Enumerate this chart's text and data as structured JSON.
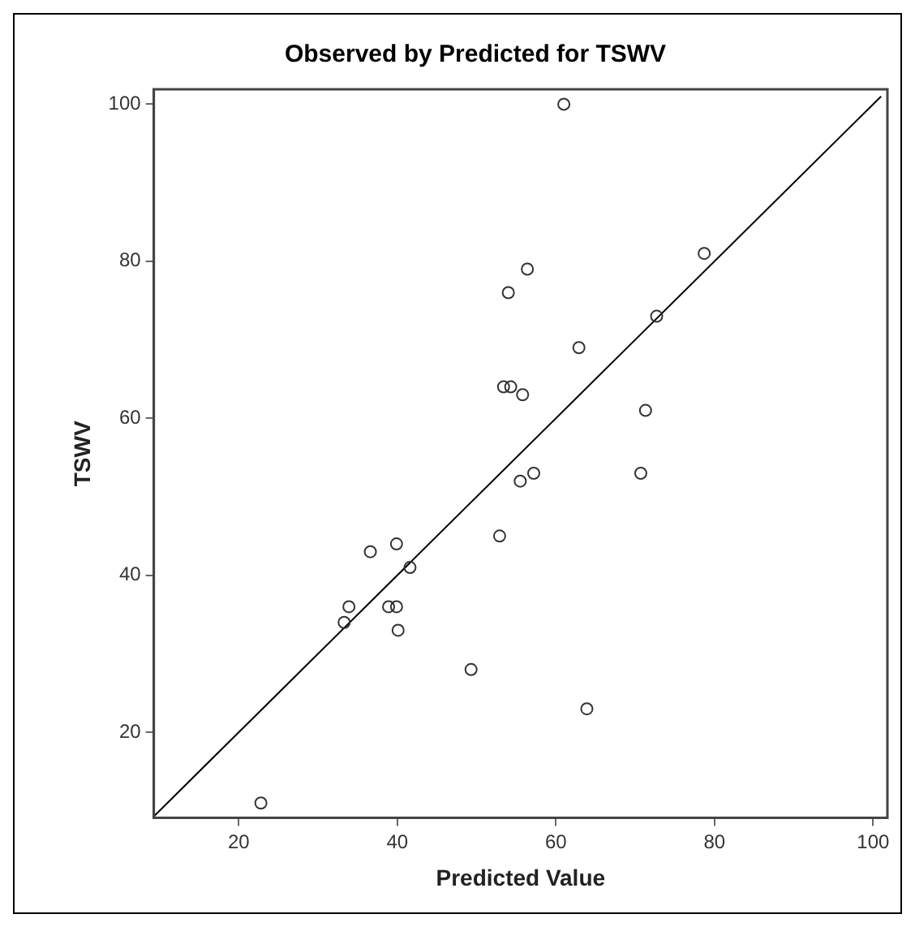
{
  "chart_data": {
    "type": "scatter",
    "title": "Observed by Predicted for TSWV",
    "xlabel": "Predicted Value",
    "ylabel": "TSWV",
    "xlim": [
      9.3,
      101.8
    ],
    "ylim": [
      9.1,
      101.9
    ],
    "xticks": [
      20,
      40,
      60,
      80,
      100
    ],
    "yticks": [
      20,
      40,
      60,
      80,
      100
    ],
    "grid": false,
    "series": [
      {
        "marker": "circle",
        "color": "#333333",
        "x": [
          61.0,
          78.7,
          56.4,
          54.0,
          72.7,
          62.9,
          53.4,
          54.3,
          55.8,
          71.3,
          57.2,
          70.7,
          55.5,
          52.9,
          39.9,
          36.6,
          41.6,
          33.9,
          38.9,
          39.9,
          33.3,
          40.1,
          49.3,
          63.9,
          22.8
        ],
        "values": [
          100,
          81,
          79,
          76,
          73,
          69,
          64,
          64,
          63,
          61,
          53,
          53,
          52,
          45,
          44,
          43,
          41,
          36,
          36,
          36,
          34,
          33,
          28,
          23,
          11
        ]
      },
      {
        "type": "line",
        "marker": "none",
        "color": "#000000",
        "x": [
          9.3,
          101
        ],
        "values": [
          9.3,
          101
        ]
      }
    ]
  }
}
